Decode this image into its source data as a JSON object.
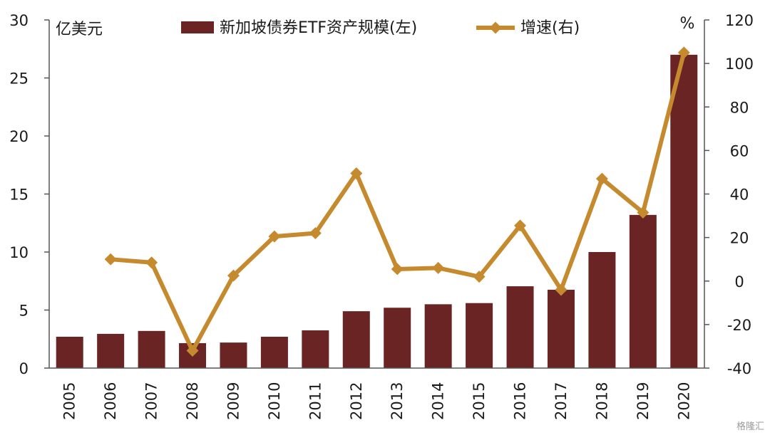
{
  "chart_data": {
    "type": "bar",
    "categories": [
      "2005",
      "2006",
      "2007",
      "2008",
      "2009",
      "2010",
      "2011",
      "2012",
      "2013",
      "2014",
      "2015",
      "2016",
      "2017",
      "2018",
      "2019",
      "2020"
    ],
    "series": [
      {
        "name": "新加坡债券ETF资产规模(左)",
        "type": "bar",
        "axis": "left",
        "color": "#6b2424",
        "values": [
          2.7,
          2.95,
          3.2,
          2.15,
          2.2,
          2.7,
          3.25,
          4.9,
          5.2,
          5.5,
          5.6,
          7.05,
          6.75,
          10.0,
          13.2,
          27.0
        ]
      },
      {
        "name": "增速(右)",
        "type": "line",
        "axis": "right",
        "color": "#c68a2e",
        "values": [
          null,
          10,
          8.5,
          -32,
          2.5,
          20.5,
          22,
          49.5,
          5.5,
          6,
          2,
          25.5,
          -4,
          47,
          31.5,
          105
        ]
      }
    ],
    "left_axis": {
      "unit": "亿美元",
      "ylim": [
        0,
        30
      ],
      "ticks": [
        0,
        5,
        10,
        15,
        20,
        25,
        30
      ]
    },
    "right_axis": {
      "unit": "%",
      "ylim": [
        -40,
        120
      ],
      "ticks": [
        -40,
        -20,
        0,
        20,
        40,
        60,
        80,
        100,
        120
      ]
    },
    "legend": "top-center",
    "grid": false
  },
  "watermark": "格隆汇"
}
